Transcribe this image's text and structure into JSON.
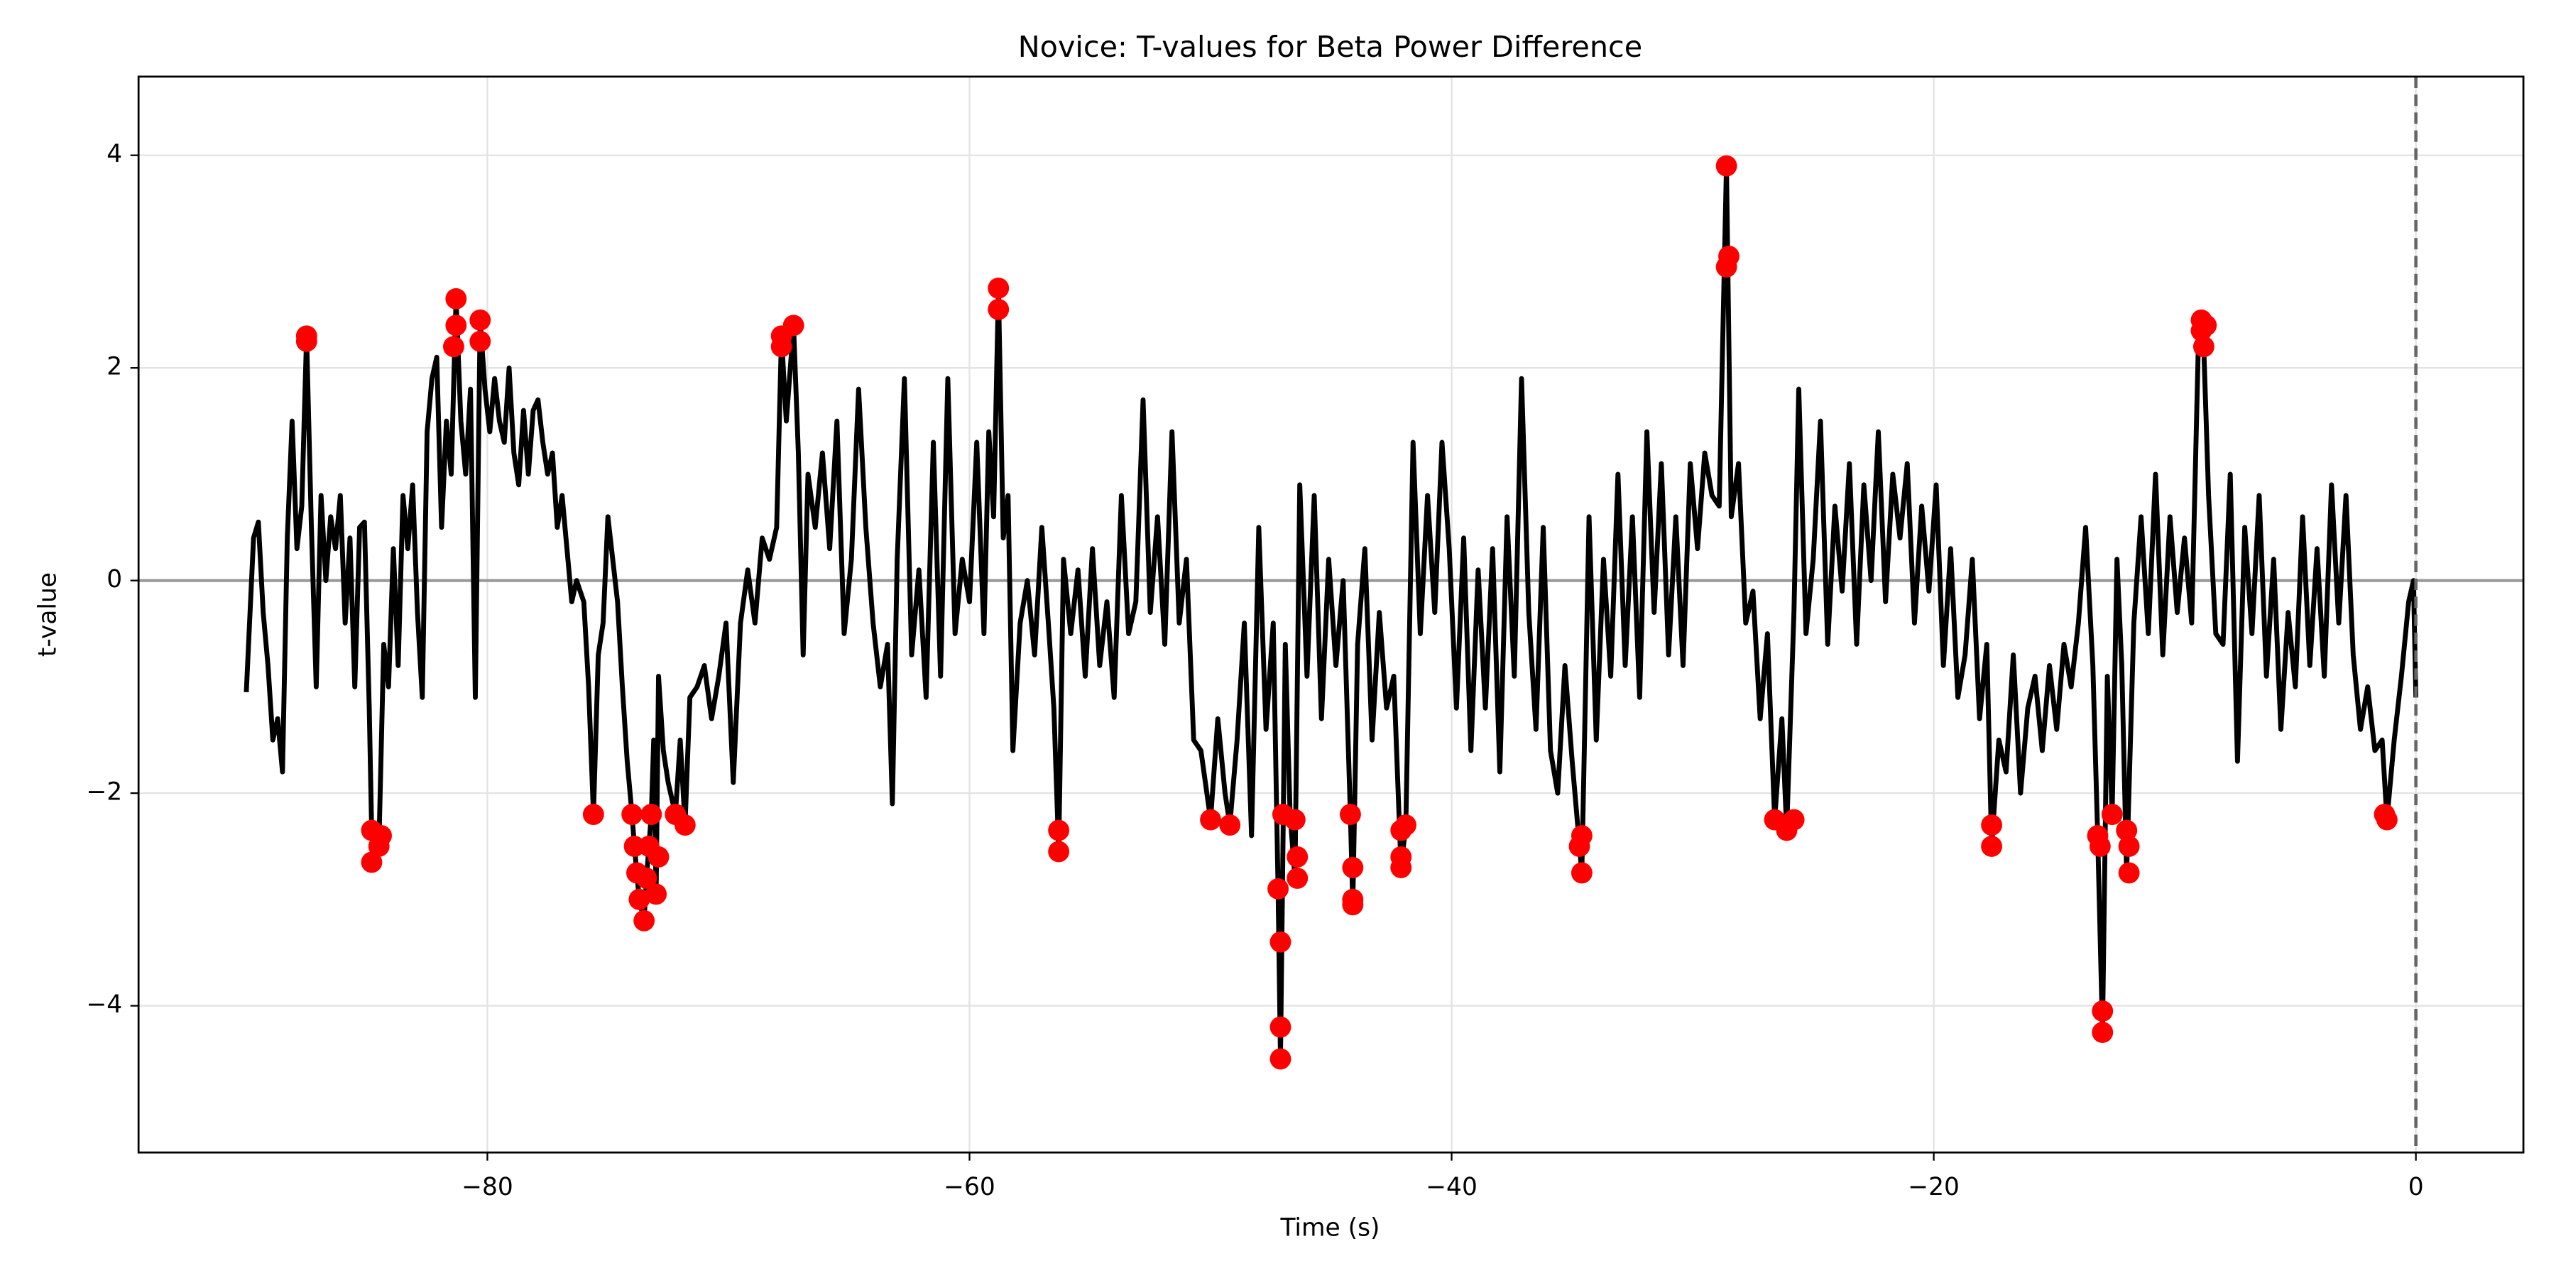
{
  "chart_data": {
    "type": "line",
    "title": "Novice: T-values for Beta Power Difference",
    "xlabel": "Time (s)",
    "ylabel": "t-value",
    "xlim": [
      -94.47,
      4.46
    ],
    "ylim": [
      -5.38,
      4.74
    ],
    "xticks": [
      {
        "value": -80,
        "label": "−80"
      },
      {
        "value": -60,
        "label": "−60"
      },
      {
        "value": -40,
        "label": "−40"
      },
      {
        "value": -20,
        "label": "−20"
      },
      0
    ],
    "yticks": [
      {
        "value": -4,
        "label": "−4"
      },
      {
        "value": -2,
        "label": "−2"
      },
      0,
      2,
      4
    ],
    "grid": true,
    "hline": 0,
    "hline_color": "#999999",
    "vline": 0,
    "vline_color": "#666666",
    "series": [
      {
        "type": "line",
        "color": "#000000",
        "x": [
          -90,
          -89.7,
          -89.5,
          -89.3,
          -89.1,
          -88.9,
          -88.7,
          -88.5,
          -88.3,
          -88.1,
          -87.9,
          -87.7,
          -87.5,
          -87.3,
          -87.1,
          -86.9,
          -86.7,
          -86.5,
          -86.3,
          -86.1,
          -85.9,
          -85.7,
          -85.5,
          -85.3,
          -85.1,
          -84.9,
          -84.8,
          -84.7,
          -84.5,
          -84.3,
          -84.1,
          -83.9,
          -83.7,
          -83.5,
          -83.3,
          -83.1,
          -82.9,
          -82.7,
          -82.5,
          -82.3,
          -82.1,
          -81.9,
          -81.7,
          -81.5,
          -81.3,
          -81.1,
          -80.9,
          -80.7,
          -80.5,
          -80.3,
          -80.1,
          -79.9,
          -79.7,
          -79.5,
          -79.3,
          -79.1,
          -78.9,
          -78.7,
          -78.5,
          -78.3,
          -78.1,
          -77.9,
          -77.7,
          -77.5,
          -77.3,
          -77.1,
          -76.9,
          -76.7,
          -76.5,
          -76.3,
          -76.0,
          -75.8,
          -75.6,
          -75.4,
          -75.2,
          -75.0,
          -74.8,
          -74.6,
          -74.4,
          -74.2,
          -74.0,
          -73.9,
          -73.8,
          -73.7,
          -73.5,
          -73.4,
          -73.3,
          -73.2,
          -73.1,
          -73.0,
          -72.9,
          -72.7,
          -72.5,
          -72.2,
          -72.0,
          -71.8,
          -71.6,
          -71.3,
          -71.0,
          -70.7,
          -70.4,
          -70.1,
          -69.8,
          -69.5,
          -69.2,
          -68.9,
          -68.6,
          -68.3,
          -68.0,
          -67.8,
          -67.6,
          -67.3,
          -67.1,
          -66.9,
          -66.7,
          -66.4,
          -66.1,
          -65.8,
          -65.5,
          -65.2,
          -64.9,
          -64.6,
          -64.3,
          -64.0,
          -63.7,
          -63.4,
          -63.2,
          -63.0,
          -62.7,
          -62.4,
          -62.1,
          -61.8,
          -61.5,
          -61.2,
          -60.9,
          -60.6,
          -60.3,
          -60.0,
          -59.7,
          -59.4,
          -59.2,
          -59.0,
          -58.8,
          -58.6,
          -58.4,
          -58.2,
          -57.9,
          -57.6,
          -57.3,
          -57.0,
          -56.7,
          -56.5,
          -56.3,
          -56.1,
          -55.8,
          -55.5,
          -55.2,
          -54.9,
          -54.6,
          -54.3,
          -54.0,
          -53.7,
          -53.4,
          -53.1,
          -52.8,
          -52.5,
          -52.2,
          -51.9,
          -51.6,
          -51.3,
          -51.0,
          -50.7,
          -50.4,
          -50.0,
          -49.7,
          -49.4,
          -49.2,
          -48.9,
          -48.6,
          -48.3,
          -48.0,
          -47.7,
          -47.4,
          -47.2,
          -47.1,
          -46.9,
          -46.7,
          -46.5,
          -46.3,
          -46.0,
          -45.7,
          -45.4,
          -45.1,
          -44.8,
          -44.5,
          -44.2,
          -44.1,
          -43.9,
          -43.6,
          -43.3,
          -43.0,
          -42.7,
          -42.4,
          -42.1,
          -41.9,
          -41.6,
          -41.3,
          -41.0,
          -40.7,
          -40.4,
          -40.1,
          -39.8,
          -39.5,
          -39.2,
          -38.9,
          -38.6,
          -38.3,
          -38.0,
          -37.7,
          -37.4,
          -37.1,
          -36.8,
          -36.5,
          -36.2,
          -35.9,
          -35.6,
          -35.3,
          -35.0,
          -34.6,
          -34.3,
          -34.0,
          -33.7,
          -33.4,
          -33.1,
          -32.8,
          -32.5,
          -32.2,
          -31.9,
          -31.6,
          -31.3,
          -31.0,
          -30.7,
          -30.4,
          -30.1,
          -29.8,
          -29.5,
          -29.2,
          -28.9,
          -28.6,
          -28.4,
          -28.1,
          -27.8,
          -27.5,
          -27.2,
          -26.9,
          -26.6,
          -26.3,
          -26.1,
          -25.8,
          -25.6,
          -25.3,
          -25.0,
          -24.7,
          -24.4,
          -24.1,
          -23.8,
          -23.5,
          -23.2,
          -22.9,
          -22.6,
          -22.3,
          -22.0,
          -21.7,
          -21.4,
          -21.1,
          -20.8,
          -20.5,
          -20.2,
          -19.9,
          -19.6,
          -19.3,
          -19.0,
          -18.7,
          -18.4,
          -18.1,
          -17.8,
          -17.6,
          -17.3,
          -17.0,
          -16.7,
          -16.4,
          -16.1,
          -15.8,
          -15.5,
          -15.2,
          -14.9,
          -14.6,
          -14.3,
          -14.0,
          -13.7,
          -13.4,
          -13.2,
          -13.0,
          -12.8,
          -12.6,
          -12.4,
          -12.2,
          -12.0,
          -11.7,
          -11.4,
          -11.1,
          -10.8,
          -10.5,
          -10.2,
          -9.9,
          -9.6,
          -9.3,
          -9.0,
          -8.8,
          -8.6,
          -8.3,
          -8.0,
          -7.7,
          -7.4,
          -7.1,
          -6.8,
          -6.5,
          -6.2,
          -5.9,
          -5.6,
          -5.3,
          -5.0,
          -4.7,
          -4.4,
          -4.1,
          -3.8,
          -3.5,
          -3.2,
          -2.9,
          -2.6,
          -2.3,
          -2.0,
          -1.7,
          -1.4,
          -1.2,
          -0.9,
          -0.6,
          -0.3,
          -0.1,
          0
        ],
        "values": [
          -1.05,
          0.4,
          0.55,
          -0.3,
          -0.8,
          -1.5,
          -1.3,
          -1.8,
          0.4,
          1.5,
          0.3,
          0.7,
          2.3,
          0.5,
          -1.0,
          0.8,
          0.0,
          0.6,
          0.3,
          0.8,
          -0.4,
          0.4,
          -1.0,
          0.5,
          0.55,
          -1.2,
          -2.35,
          -2.65,
          -2.5,
          -0.6,
          -1.0,
          0.3,
          -0.8,
          0.8,
          0.3,
          0.9,
          -0.3,
          -1.1,
          1.4,
          1.9,
          2.1,
          0.5,
          1.5,
          1.0,
          2.65,
          1.5,
          1.0,
          1.8,
          -1.1,
          2.45,
          1.8,
          1.4,
          1.9,
          1.5,
          1.3,
          2.0,
          1.2,
          0.9,
          1.6,
          1.0,
          1.6,
          1.7,
          1.3,
          1.0,
          1.2,
          0.5,
          0.8,
          0.3,
          -0.2,
          0.0,
          -0.2,
          -1.0,
          -2.2,
          -0.7,
          -0.4,
          0.6,
          0.2,
          -0.2,
          -1.0,
          -1.7,
          -2.2,
          -2.5,
          -2.75,
          -3.0,
          -3.2,
          -2.8,
          -2.5,
          -2.2,
          -1.5,
          -2.95,
          -0.9,
          -1.6,
          -1.9,
          -2.2,
          -1.5,
          -2.3,
          -1.1,
          -1.0,
          -0.8,
          -1.3,
          -0.9,
          -0.4,
          -1.9,
          -0.4,
          0.1,
          -0.4,
          0.4,
          0.2,
          0.5,
          2.3,
          1.5,
          2.4,
          1.2,
          -0.7,
          1.0,
          0.5,
          1.2,
          0.3,
          1.5,
          -0.5,
          0.2,
          1.8,
          0.5,
          -0.4,
          -1.0,
          -0.6,
          -2.1,
          0.2,
          1.9,
          -0.7,
          0.1,
          -1.1,
          1.3,
          -0.9,
          1.9,
          -0.5,
          0.2,
          -0.2,
          1.3,
          -0.5,
          1.4,
          0.6,
          2.75,
          0.4,
          0.8,
          -1.6,
          -0.4,
          0.0,
          -0.7,
          0.5,
          -0.5,
          -1.2,
          -2.55,
          0.2,
          -0.5,
          0.1,
          -0.9,
          0.3,
          -0.8,
          -0.2,
          -1.1,
          0.8,
          -0.5,
          -0.2,
          1.7,
          -0.3,
          0.6,
          -0.6,
          1.4,
          -0.4,
          0.2,
          -1.5,
          -1.6,
          -2.25,
          -1.3,
          -2.0,
          -2.3,
          -1.5,
          -0.4,
          -2.4,
          0.5,
          -1.4,
          -0.4,
          -2.9,
          -4.5,
          -0.6,
          -2.2,
          -2.8,
          0.9,
          -0.9,
          0.8,
          -1.3,
          0.2,
          -0.8,
          0.0,
          -2.2,
          -3.05,
          -0.6,
          0.3,
          -1.5,
          -0.3,
          -1.2,
          -0.9,
          -2.7,
          -2.3,
          1.3,
          -0.5,
          0.8,
          -0.3,
          1.3,
          0.3,
          -1.2,
          0.4,
          -1.6,
          0.1,
          -1.2,
          0.3,
          -1.8,
          0.6,
          -0.9,
          1.9,
          -0.3,
          -1.4,
          0.5,
          -1.6,
          -2.0,
          -0.8,
          -1.7,
          -2.75,
          0.6,
          -1.5,
          0.2,
          -0.9,
          1.0,
          -0.8,
          0.6,
          -1.1,
          1.4,
          -0.3,
          1.1,
          -0.7,
          0.6,
          -0.8,
          1.1,
          0.3,
          1.2,
          0.8,
          0.7,
          3.9,
          0.6,
          1.1,
          -0.4,
          -0.1,
          -1.3,
          -0.5,
          -2.25,
          -1.3,
          -2.35,
          -0.3,
          1.8,
          -0.5,
          0.2,
          1.5,
          -0.6,
          0.7,
          -0.1,
          1.1,
          -0.6,
          0.9,
          0.0,
          1.4,
          -0.2,
          1.0,
          0.4,
          1.1,
          -0.4,
          0.7,
          -0.1,
          0.9,
          -0.8,
          0.3,
          -1.1,
          -0.7,
          0.2,
          -1.3,
          -0.6,
          -2.5,
          -1.5,
          -1.8,
          -0.7,
          -2.0,
          -1.2,
          -0.9,
          -1.6,
          -0.8,
          -1.4,
          -0.6,
          -1.0,
          -0.4,
          0.5,
          -0.8,
          -2.4,
          -4.25,
          -0.9,
          -2.2,
          0.2,
          -0.8,
          -2.75,
          -0.4,
          0.6,
          -0.5,
          1.0,
          -0.7,
          0.6,
          -0.3,
          0.4,
          -0.4,
          2.45,
          2.2,
          0.8,
          -0.5,
          -0.6,
          1.0,
          -1.7,
          0.5,
          -0.5,
          0.8,
          -0.9,
          0.2,
          -1.4,
          -0.3,
          -1.0,
          0.6,
          -0.8,
          0.3,
          -0.9,
          0.9,
          -0.4,
          0.8,
          -0.7,
          -1.4,
          -1.0,
          -1.6,
          -1.5,
          -2.25,
          -1.5,
          -0.9,
          -0.2,
          0.0,
          -1.1
        ]
      },
      {
        "type": "scatter",
        "color": "#ff0000",
        "x": [
          -87.5,
          -87.5,
          -84.8,
          -84.8,
          -84.5,
          -84.4,
          -81.3,
          -81.3,
          -81.4,
          -80.3,
          -80.3,
          -75.6,
          -74,
          -73.9,
          -73.8,
          -73.7,
          -73.5,
          -73.4,
          -73.3,
          -73.2,
          -73.0,
          -72.9,
          -72.2,
          -71.8,
          -67.8,
          -67.8,
          -67.3,
          -58.8,
          -58.8,
          -56.3,
          -56.3,
          -50,
          -49.2,
          -47.2,
          -47.1,
          -47.1,
          -47.1,
          -47,
          -46.5,
          -46.4,
          -46.4,
          -44.2,
          -44.1,
          -44.1,
          -44.1,
          -42.1,
          -42.1,
          -42.1,
          -41.9,
          -34.6,
          -34.7,
          -34.6,
          -28.6,
          -28.5,
          -28.6,
          -26.6,
          -26.1,
          -25.8,
          -17.6,
          -17.6,
          -13.2,
          -13.1,
          -13.0,
          -13.0,
          -12.6,
          -12.0,
          -11.9,
          -11.9,
          -8.9,
          -8.9,
          -8.8,
          -8.7,
          -1.3,
          -1.2
        ],
        "values": [
          2.3,
          2.25,
          -2.35,
          -2.65,
          -2.5,
          -2.4,
          2.65,
          2.4,
          2.2,
          2.45,
          2.25,
          -2.2,
          -2.2,
          -2.5,
          -2.75,
          -3.0,
          -3.2,
          -2.8,
          -2.5,
          -2.2,
          -2.95,
          -2.6,
          -2.2,
          -2.3,
          2.3,
          2.2,
          2.4,
          2.75,
          2.55,
          -2.35,
          -2.55,
          -2.25,
          -2.3,
          -2.9,
          -3.4,
          -4.2,
          -4.5,
          -2.2,
          -2.25,
          -2.6,
          -2.8,
          -2.2,
          -2.7,
          -3.0,
          -3.05,
          -2.35,
          -2.6,
          -2.7,
          -2.3,
          -2.4,
          -2.5,
          -2.75,
          3.9,
          3.05,
          2.95,
          -2.25,
          -2.35,
          -2.25,
          -2.3,
          -2.5,
          -2.4,
          -2.5,
          -4.05,
          -4.25,
          -2.2,
          -2.35,
          -2.5,
          -2.75,
          2.45,
          2.35,
          2.2,
          2.4,
          -2.2,
          -2.25
        ]
      }
    ]
  }
}
